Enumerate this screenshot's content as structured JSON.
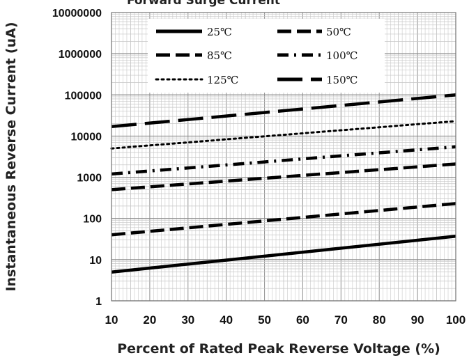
{
  "chart_data": {
    "type": "line",
    "title": "Forward Surge Current",
    "xlabel": "Percent of  Rated Peak Reverse Voltage (%)",
    "ylabel": "Instantaneous Reverse Current (uA)",
    "xlim": [
      10,
      100
    ],
    "ylim": [
      1,
      10000000
    ],
    "yscale": "log",
    "grid": true,
    "legend_position": "top",
    "x_ticks": [
      "10",
      "20",
      "30",
      "40",
      "50",
      "60",
      "70",
      "80",
      "90",
      "100"
    ],
    "y_ticks": [
      "1",
      "10",
      "100",
      "1000",
      "10000",
      "100000",
      "1000000",
      "10000000"
    ],
    "series": [
      {
        "name": "25℃",
        "dash": "solid",
        "x": [
          10,
          100
        ],
        "y": [
          5,
          37
        ]
      },
      {
        "name": "50℃",
        "dash": "dash",
        "x": [
          10,
          100
        ],
        "y": [
          40,
          230
        ]
      },
      {
        "name": "85℃",
        "dash": "dash",
        "x": [
          10,
          100
        ],
        "y": [
          500,
          2100
        ]
      },
      {
        "name": "100℃",
        "dash": "dashdot",
        "x": [
          10,
          100
        ],
        "y": [
          1200,
          5500
        ]
      },
      {
        "name": "125℃",
        "dash": "dot",
        "x": [
          10,
          100
        ],
        "y": [
          5000,
          23000
        ]
      },
      {
        "name": "150℃",
        "dash": "longdash",
        "x": [
          10,
          100
        ],
        "y": [
          17000,
          100000
        ]
      }
    ]
  }
}
